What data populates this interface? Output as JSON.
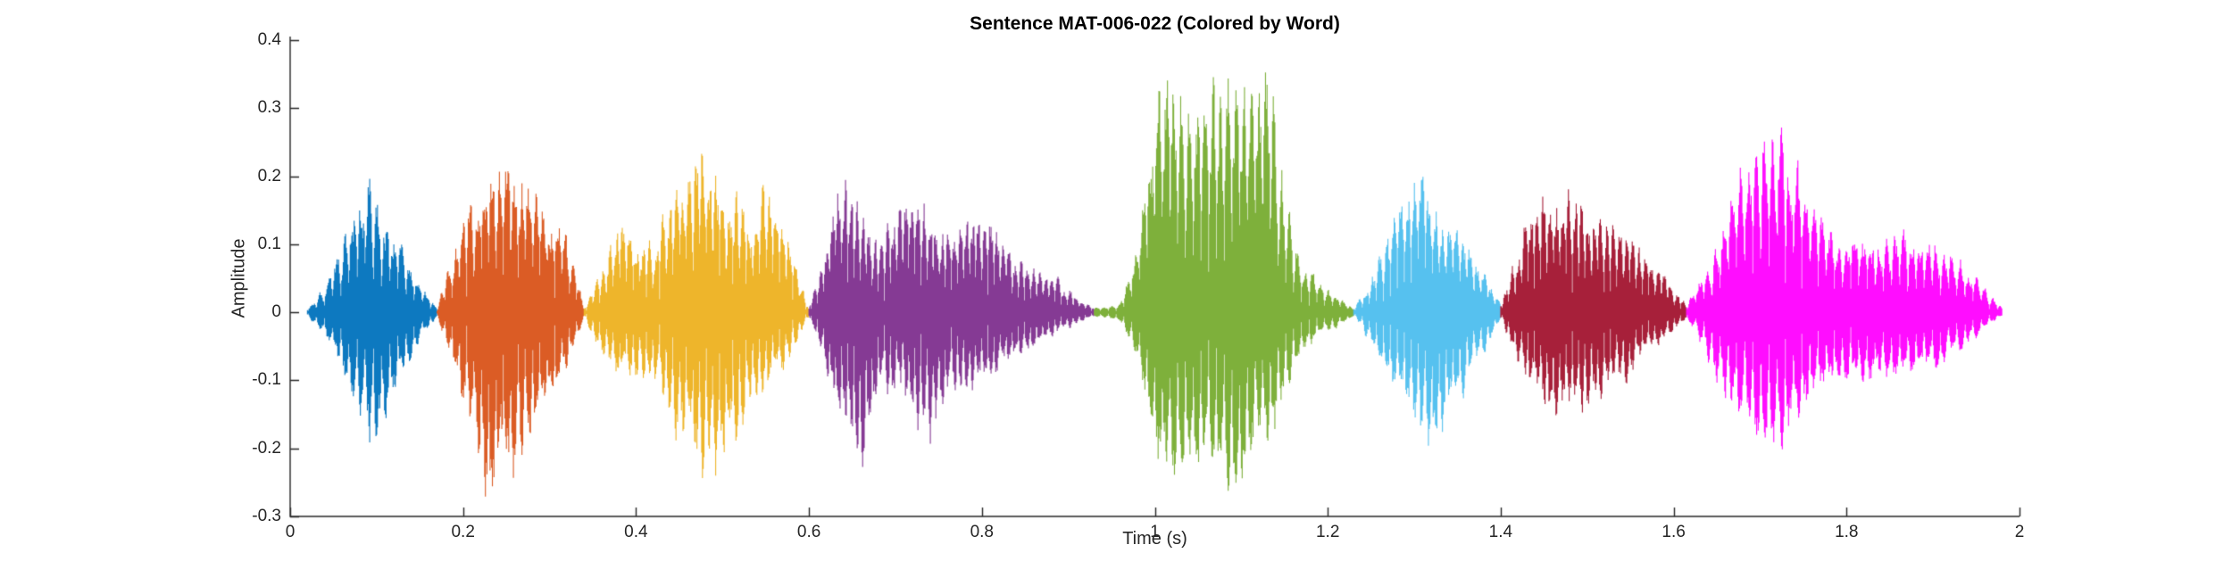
{
  "chart_data": {
    "type": "line",
    "subtype": "audio-waveform-colored-by-word",
    "title": "Sentence MAT-006-022 (Colored by Word)",
    "xlabel": "Time (s)",
    "ylabel": "Amplitude",
    "xlim": [
      0,
      2
    ],
    "ylim": [
      -0.3,
      0.4
    ],
    "xticks": [
      0,
      0.2,
      0.4,
      0.6,
      0.8,
      1,
      1.2,
      1.4,
      1.6,
      1.8,
      2
    ],
    "xtick_labels": [
      "0",
      "0.2",
      "0.4",
      "0.6",
      "0.8",
      "1",
      "1.2",
      "1.4",
      "1.6",
      "1.8",
      "2"
    ],
    "yticks": [
      -0.3,
      -0.2,
      -0.1,
      0,
      0.1,
      0.2,
      0.3,
      0.4
    ],
    "ytick_labels": [
      "-0.3",
      "-0.2",
      "-0.1",
      "0",
      "0.1",
      "0.2",
      "0.3",
      "0.4"
    ],
    "grid": false,
    "box": false,
    "legend": "none",
    "axis_color": "#262626",
    "background": "#ffffff",
    "segments": [
      {
        "word_index": 1,
        "color": "#0072BD",
        "t_start": 0.02,
        "t_end": 0.17,
        "peak_amplitude": 0.18,
        "envelope": [
          [
            0.02,
            0.005,
            0.005
          ],
          [
            0.04,
            0.03,
            0.03
          ],
          [
            0.06,
            0.09,
            0.08
          ],
          [
            0.08,
            0.15,
            0.12
          ],
          [
            0.09,
            0.17,
            0.15
          ],
          [
            0.1,
            0.14,
            0.18
          ],
          [
            0.12,
            0.11,
            0.11
          ],
          [
            0.14,
            0.06,
            0.06
          ],
          [
            0.16,
            0.02,
            0.02
          ],
          [
            0.17,
            0.005,
            0.005
          ]
        ]
      },
      {
        "word_index": 2,
        "color": "#D95319",
        "t_start": 0.17,
        "t_end": 0.34,
        "peak_amplitude": 0.25,
        "envelope": [
          [
            0.17,
            0.005,
            0.005
          ],
          [
            0.19,
            0.08,
            0.08
          ],
          [
            0.21,
            0.15,
            0.17
          ],
          [
            0.23,
            0.17,
            0.25
          ],
          [
            0.25,
            0.18,
            0.22
          ],
          [
            0.27,
            0.17,
            0.18
          ],
          [
            0.29,
            0.15,
            0.14
          ],
          [
            0.31,
            0.12,
            0.1
          ],
          [
            0.33,
            0.05,
            0.04
          ],
          [
            0.34,
            0.005,
            0.005
          ]
        ]
      },
      {
        "word_index": 3,
        "color": "#EDB120",
        "t_start": 0.34,
        "t_end": 0.6,
        "peak_amplitude": 0.24,
        "envelope": [
          [
            0.34,
            0.005,
            0.005
          ],
          [
            0.36,
            0.05,
            0.05
          ],
          [
            0.38,
            0.11,
            0.09
          ],
          [
            0.4,
            0.09,
            0.08
          ],
          [
            0.42,
            0.08,
            0.08
          ],
          [
            0.44,
            0.14,
            0.13
          ],
          [
            0.46,
            0.21,
            0.18
          ],
          [
            0.475,
            0.24,
            0.2
          ],
          [
            0.49,
            0.2,
            0.22
          ],
          [
            0.51,
            0.15,
            0.17
          ],
          [
            0.53,
            0.12,
            0.12
          ],
          [
            0.55,
            0.15,
            0.1
          ],
          [
            0.57,
            0.12,
            0.08
          ],
          [
            0.59,
            0.04,
            0.03
          ],
          [
            0.6,
            0.005,
            0.005
          ]
        ]
      },
      {
        "word_index": 4,
        "color": "#7E2F8E",
        "t_start": 0.6,
        "t_end": 0.93,
        "peak_amplitude": 0.19,
        "envelope": [
          [
            0.6,
            0.005,
            0.005
          ],
          [
            0.615,
            0.06,
            0.05
          ],
          [
            0.63,
            0.15,
            0.13
          ],
          [
            0.645,
            0.18,
            0.16
          ],
          [
            0.66,
            0.13,
            0.19
          ],
          [
            0.68,
            0.09,
            0.09
          ],
          [
            0.7,
            0.12,
            0.11
          ],
          [
            0.72,
            0.16,
            0.13
          ],
          [
            0.74,
            0.13,
            0.17
          ],
          [
            0.76,
            0.1,
            0.1
          ],
          [
            0.78,
            0.11,
            0.09
          ],
          [
            0.8,
            0.12,
            0.09
          ],
          [
            0.82,
            0.1,
            0.08
          ],
          [
            0.84,
            0.07,
            0.06
          ],
          [
            0.87,
            0.05,
            0.04
          ],
          [
            0.9,
            0.03,
            0.02
          ],
          [
            0.93,
            0.005,
            0.005
          ]
        ]
      },
      {
        "word_index": 5,
        "color": "#77AC30",
        "t_start": 0.93,
        "t_end": 1.23,
        "peak_amplitude": 0.31,
        "envelope": [
          [
            0.93,
            0.005,
            0.005
          ],
          [
            0.96,
            0.01,
            0.01
          ],
          [
            0.98,
            0.08,
            0.06
          ],
          [
            1.0,
            0.27,
            0.19
          ],
          [
            1.02,
            0.3,
            0.21
          ],
          [
            1.05,
            0.28,
            0.2
          ],
          [
            1.08,
            0.3,
            0.21
          ],
          [
            1.11,
            0.28,
            0.2
          ],
          [
            1.135,
            0.31,
            0.19
          ],
          [
            1.15,
            0.15,
            0.1
          ],
          [
            1.17,
            0.06,
            0.05
          ],
          [
            1.19,
            0.04,
            0.03
          ],
          [
            1.21,
            0.02,
            0.02
          ],
          [
            1.23,
            0.005,
            0.005
          ]
        ]
      },
      {
        "word_index": 6,
        "color": "#4DBEEE",
        "t_start": 1.23,
        "t_end": 1.4,
        "peak_amplitude": 0.2,
        "envelope": [
          [
            1.23,
            0.005,
            0.005
          ],
          [
            1.25,
            0.04,
            0.04
          ],
          [
            1.27,
            0.1,
            0.09
          ],
          [
            1.29,
            0.16,
            0.13
          ],
          [
            1.305,
            0.2,
            0.16
          ],
          [
            1.32,
            0.15,
            0.19
          ],
          [
            1.34,
            0.11,
            0.13
          ],
          [
            1.36,
            0.09,
            0.09
          ],
          [
            1.38,
            0.05,
            0.05
          ],
          [
            1.4,
            0.01,
            0.01
          ]
        ]
      },
      {
        "word_index": 7,
        "color": "#A2142F",
        "t_start": 1.4,
        "t_end": 1.615,
        "peak_amplitude": 0.18,
        "envelope": [
          [
            1.4,
            0.01,
            0.01
          ],
          [
            1.42,
            0.08,
            0.06
          ],
          [
            1.44,
            0.17,
            0.11
          ],
          [
            1.46,
            0.14,
            0.13
          ],
          [
            1.48,
            0.17,
            0.12
          ],
          [
            1.5,
            0.14,
            0.12
          ],
          [
            1.52,
            0.12,
            0.1
          ],
          [
            1.54,
            0.1,
            0.09
          ],
          [
            1.56,
            0.08,
            0.07
          ],
          [
            1.585,
            0.05,
            0.04
          ],
          [
            1.615,
            0.01,
            0.01
          ]
        ]
      },
      {
        "word_index": 8,
        "color": "#FF00FF",
        "t_start": 1.615,
        "t_end": 1.98,
        "peak_amplitude": 0.24,
        "envelope": [
          [
            1.615,
            0.01,
            0.01
          ],
          [
            1.64,
            0.06,
            0.06
          ],
          [
            1.66,
            0.13,
            0.11
          ],
          [
            1.68,
            0.19,
            0.14
          ],
          [
            1.7,
            0.23,
            0.16
          ],
          [
            1.72,
            0.24,
            0.17
          ],
          [
            1.74,
            0.18,
            0.14
          ],
          [
            1.76,
            0.13,
            0.12
          ],
          [
            1.78,
            0.11,
            0.1
          ],
          [
            1.81,
            0.1,
            0.09
          ],
          [
            1.84,
            0.09,
            0.08
          ],
          [
            1.87,
            0.1,
            0.08
          ],
          [
            1.9,
            0.09,
            0.07
          ],
          [
            1.93,
            0.07,
            0.05
          ],
          [
            1.96,
            0.03,
            0.02
          ],
          [
            1.98,
            0.005,
            0.005
          ]
        ]
      }
    ]
  }
}
